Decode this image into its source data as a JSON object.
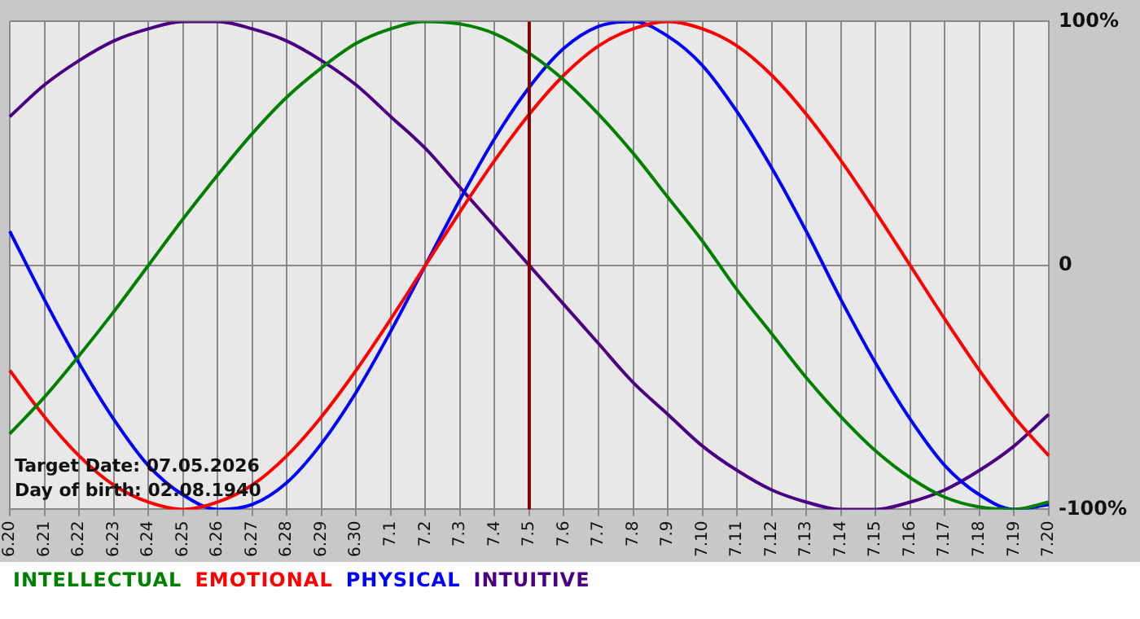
{
  "chart_data": {
    "type": "line",
    "categories": [
      "6.20",
      "6.21",
      "6.22",
      "6.23",
      "6.24",
      "6.25",
      "6.26",
      "6.27",
      "6.28",
      "6.29",
      "6.30",
      "7.1",
      "7.2",
      "7.3",
      "7.4",
      "7.5",
      "7.6",
      "7.7",
      "7.8",
      "7.9",
      "7.10",
      "7.11",
      "7.12",
      "7.13",
      "7.14",
      "7.15",
      "7.16",
      "7.17",
      "7.18",
      "7.19",
      "7.20"
    ],
    "series": [
      {
        "name": "INTELLECTUAL",
        "color": "#008000",
        "values": [
          -69,
          -54,
          -37,
          -19,
          0,
          19,
          37,
          54,
          69,
          81,
          91,
          97,
          100,
          99,
          95,
          87,
          76,
          62,
          46,
          28,
          10,
          -10,
          -28,
          -46,
          -62,
          -76,
          -87,
          -95,
          -99,
          -100,
          -97
        ]
      },
      {
        "name": "EMOTIONAL",
        "color": "#ff0000",
        "values": [
          -43,
          -62,
          -78,
          -90,
          -97,
          -100,
          -97,
          -90,
          -78,
          -62,
          -43,
          -22,
          0,
          22,
          43,
          62,
          78,
          90,
          97,
          100,
          97,
          90,
          78,
          62,
          43,
          22,
          0,
          -22,
          -43,
          -62,
          -78
        ]
      },
      {
        "name": "PHYSICAL",
        "color": "#0000ff",
        "values": [
          14,
          -14,
          -40,
          -63,
          -82,
          -94,
          -100,
          -98,
          -89,
          -73,
          -52,
          -27,
          0,
          27,
          52,
          73,
          89,
          98,
          100,
          94,
          82,
          63,
          40,
          14,
          -14,
          -40,
          -63,
          -82,
          -94,
          -100,
          -98
        ]
      },
      {
        "name": "INTUITIVE",
        "color": "#4b0082",
        "values": [
          61,
          74,
          84,
          92,
          97,
          100,
          100,
          97,
          92,
          84,
          74,
          61,
          48,
          32,
          16,
          0,
          -16,
          -32,
          -48,
          -61,
          -74,
          -84,
          -92,
          -97,
          -100,
          -100,
          -97,
          -92,
          -84,
          -74,
          -61
        ]
      }
    ],
    "ylim": [
      -100,
      100
    ],
    "yticks": [
      {
        "value": 100,
        "label": "100%"
      },
      0,
      {
        "value": -100,
        "label": "-100%"
      }
    ],
    "grid": true,
    "legend": "bottom left",
    "marker": "none",
    "line_style": "solid",
    "ref_lines": [
      {
        "axis": "x",
        "value": "7.5",
        "color": "#800000"
      }
    ],
    "annotations": [
      "Target Date: 07.05.2026",
      "Day of birth: 02.08.1940"
    ]
  }
}
